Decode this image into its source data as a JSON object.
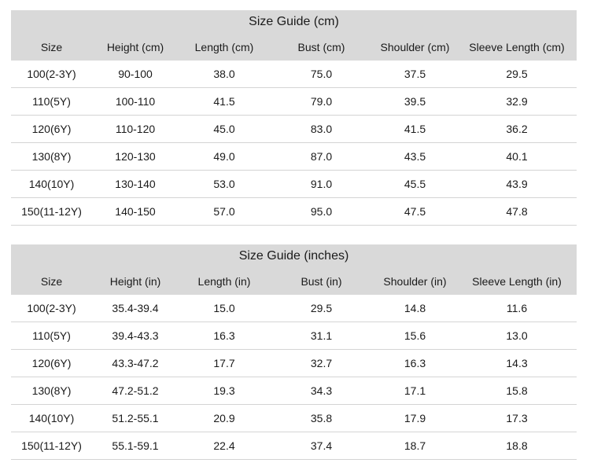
{
  "tables": [
    {
      "title": "Size Guide (cm)",
      "headers": [
        "Size",
        "Height (cm)",
        "Length (cm)",
        "Bust (cm)",
        "Shoulder (cm)",
        "Sleeve Length (cm)"
      ],
      "rows": [
        [
          "100(2-3Y)",
          "90-100",
          "38.0",
          "75.0",
          "37.5",
          "29.5"
        ],
        [
          "110(5Y)",
          "100-110",
          "41.5",
          "79.0",
          "39.5",
          "32.9"
        ],
        [
          "120(6Y)",
          "110-120",
          "45.0",
          "83.0",
          "41.5",
          "36.2"
        ],
        [
          "130(8Y)",
          "120-130",
          "49.0",
          "87.0",
          "43.5",
          "40.1"
        ],
        [
          "140(10Y)",
          "130-140",
          "53.0",
          "91.0",
          "45.5",
          "43.9"
        ],
        [
          "150(11-12Y)",
          "140-150",
          "57.0",
          "95.0",
          "47.5",
          "47.8"
        ]
      ]
    },
    {
      "title": "Size Guide (inches)",
      "headers": [
        "Size",
        "Height (in)",
        "Length (in)",
        "Bust (in)",
        "Shoulder (in)",
        "Sleeve Length (in)"
      ],
      "rows": [
        [
          "100(2-3Y)",
          "35.4-39.4",
          "15.0",
          "29.5",
          "14.8",
          "11.6"
        ],
        [
          "110(5Y)",
          "39.4-43.3",
          "16.3",
          "31.1",
          "15.6",
          "13.0"
        ],
        [
          "120(6Y)",
          "43.3-47.2",
          "17.7",
          "32.7",
          "16.3",
          "14.3"
        ],
        [
          "130(8Y)",
          "47.2-51.2",
          "19.3",
          "34.3",
          "17.1",
          "15.8"
        ],
        [
          "140(10Y)",
          "51.2-55.1",
          "20.9",
          "35.8",
          "17.9",
          "17.3"
        ],
        [
          "150(11-12Y)",
          "55.1-59.1",
          "22.4",
          "37.4",
          "18.7",
          "18.8"
        ]
      ]
    }
  ]
}
